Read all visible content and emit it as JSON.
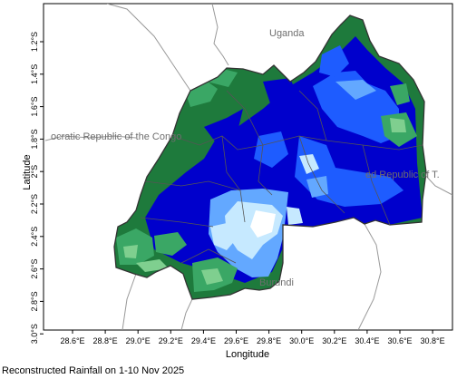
{
  "map": {
    "x_axis_title": "Longitude",
    "y_axis_title": "Latitude",
    "x_ticks": [
      "28.6°E",
      "28.8°E",
      "29.0°E",
      "29.2°E",
      "29.4°E",
      "29.6°E",
      "29.8°E",
      "30.0°E",
      "30.2°E",
      "30.4°E",
      "30.6°E",
      "30.8°E"
    ],
    "y_ticks": [
      "1.2°S",
      "1.4°S",
      "1.6°S",
      "1.8°S",
      "2°S",
      "2.2°S",
      "2.4°S",
      "2.6°S",
      "2.8°S",
      "3.0°S"
    ],
    "country_labels": {
      "uganda": "Uganda",
      "drc": "ocratic Republic of the Congo",
      "tanzania": "ed Republic of T.",
      "burundi": "Burundi"
    },
    "palette": {
      "dark_green": "#1e7a3c",
      "mid_green": "#3aa765",
      "light_green": "#7fcf8f",
      "dark_blue": "#0000cc",
      "mid_blue": "#1e5cff",
      "light_blue": "#63a8ff",
      "pale_blue": "#c6e9ff",
      "land_background": "#ffffff",
      "boundary": "#888888"
    }
  },
  "caption": "Reconstructed Rainfall on 1-10 Nov 2025"
}
